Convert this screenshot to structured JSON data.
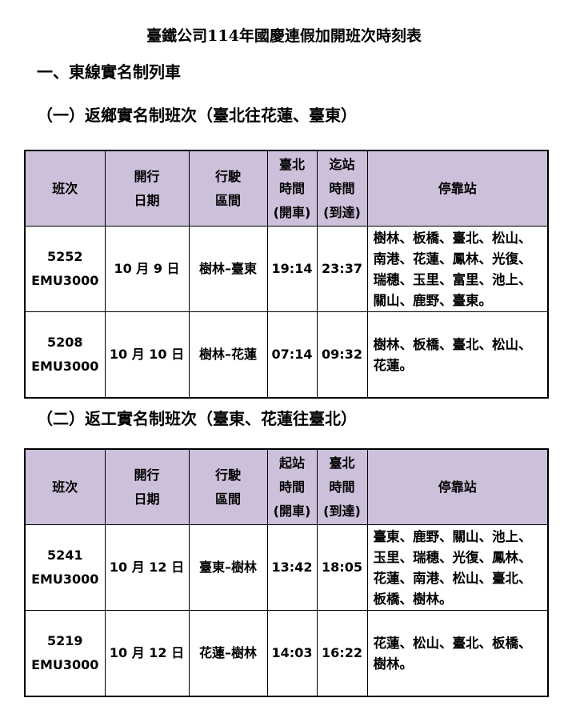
{
  "title": "臺鐵公司114年國慶連假加開班次時刻表",
  "section1": "一、東線實名制列車",
  "tables": [
    {
      "heading": "（一）返鄉實名制班次（臺北往花蓮、臺東）",
      "headers": [
        [
          "班次"
        ],
        [
          "開行",
          "日期"
        ],
        [
          "行駛",
          "區間"
        ],
        [
          "臺北",
          "時間",
          "(開車)"
        ],
        [
          "迄站",
          "時間",
          "(到達)"
        ],
        [
          "停靠站"
        ]
      ],
      "rows": [
        {
          "train": "5252",
          "type": "EMU3000",
          "date": "10 月 9 日",
          "route": "樹林–臺東",
          "dep": "19:14",
          "arr": "23:37",
          "stops": "樹林、板橋、臺北、松山、南港、花蓮、鳳林、光復、瑞穗、玉里、富里、池上、關山、鹿野、臺東。"
        },
        {
          "train": "5208",
          "type": "EMU3000",
          "date": "10 月 10 日",
          "route": "樹林–花蓮",
          "dep": "07:14",
          "arr": "09:32",
          "stops": "樹林、板橋、臺北、松山、花蓮。"
        }
      ]
    },
    {
      "heading": "（二）返工實名制班次（臺東、花蓮往臺北）",
      "headers": [
        [
          "班次"
        ],
        [
          "開行",
          "日期"
        ],
        [
          "行駛",
          "區間"
        ],
        [
          "起站",
          "時間",
          "(開車)"
        ],
        [
          "臺北",
          "時間",
          "(到達)"
        ],
        [
          "停靠站"
        ]
      ],
      "rows": [
        {
          "train": "5241",
          "type": "EMU3000",
          "date": "10 月 12 日",
          "route": "臺東–樹林",
          "dep": "13:42",
          "arr": "18:05",
          "stops": "臺東、鹿野、關山、池上、玉里、瑞穗、光復、鳳林、花蓮、南港、松山、臺北、板橋、樹林。"
        },
        {
          "train": "5219",
          "type": "EMU3000",
          "date": "10 月 12 日",
          "route": "花蓮–樹林",
          "dep": "14:03",
          "arr": "16:22",
          "stops": "花蓮、松山、臺北、板橋、樹林。"
        }
      ]
    }
  ],
  "colors": {
    "header_bg": "#ccc0da"
  }
}
